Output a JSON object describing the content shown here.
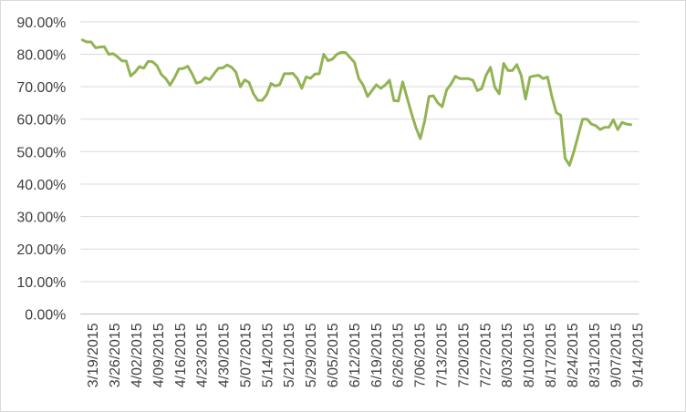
{
  "chart_data": {
    "type": "line",
    "title": "",
    "xlabel": "",
    "ylabel": "",
    "ylim": [
      0,
      0.9
    ],
    "y_ticks": [
      "0.00%",
      "10.00%",
      "20.00%",
      "30.00%",
      "40.00%",
      "50.00%",
      "60.00%",
      "70.00%",
      "80.00%",
      "90.00%"
    ],
    "x_tick_labels": [
      "3/19/2015",
      "3/26/2015",
      "4/02/2015",
      "4/09/2015",
      "4/16/2015",
      "4/23/2015",
      "4/30/2015",
      "5/07/2015",
      "5/14/2015",
      "5/21/2015",
      "5/29/2015",
      "6/05/2015",
      "6/12/2015",
      "6/19/2015",
      "6/26/2015",
      "7/06/2015",
      "7/13/2015",
      "7/20/2015",
      "7/27/2015",
      "8/03/2015",
      "8/10/2015",
      "8/17/2015",
      "8/24/2015",
      "8/31/2015",
      "9/07/2015",
      "9/14/2015"
    ],
    "grid": true,
    "legend": "none",
    "colors": {
      "series": "#92b353",
      "grid": "#d9d9d9",
      "axis": "#bfbfbf",
      "text": "#404040"
    },
    "values": [
      0.844,
      0.838,
      0.838,
      0.82,
      0.822,
      0.823,
      0.8,
      0.802,
      0.792,
      0.78,
      0.779,
      0.733,
      0.745,
      0.762,
      0.757,
      0.778,
      0.777,
      0.765,
      0.738,
      0.725,
      0.705,
      0.728,
      0.755,
      0.756,
      0.763,
      0.74,
      0.711,
      0.715,
      0.728,
      0.722,
      0.74,
      0.757,
      0.758,
      0.767,
      0.76,
      0.745,
      0.7,
      0.721,
      0.713,
      0.678,
      0.658,
      0.658,
      0.675,
      0.71,
      0.702,
      0.707,
      0.74,
      0.74,
      0.741,
      0.725,
      0.695,
      0.73,
      0.726,
      0.739,
      0.74,
      0.8,
      0.78,
      0.785,
      0.8,
      0.806,
      0.805,
      0.79,
      0.775,
      0.725,
      0.705,
      0.67,
      0.688,
      0.706,
      0.695,
      0.705,
      0.72,
      0.657,
      0.656,
      0.715,
      0.666,
      0.618,
      0.575,
      0.54,
      0.594,
      0.67,
      0.672,
      0.65,
      0.638,
      0.69,
      0.708,
      0.732,
      0.725,
      0.725,
      0.725,
      0.72,
      0.688,
      0.694,
      0.735,
      0.76,
      0.698,
      0.678,
      0.772,
      0.75,
      0.75,
      0.768,
      0.735,
      0.662,
      0.73,
      0.733,
      0.735,
      0.725,
      0.73,
      0.67,
      0.62,
      0.612,
      0.48,
      0.458,
      0.5,
      0.55,
      0.6,
      0.6,
      0.585,
      0.58,
      0.568,
      0.575,
      0.575,
      0.598,
      0.568,
      0.59,
      0.585,
      0.583
    ]
  }
}
